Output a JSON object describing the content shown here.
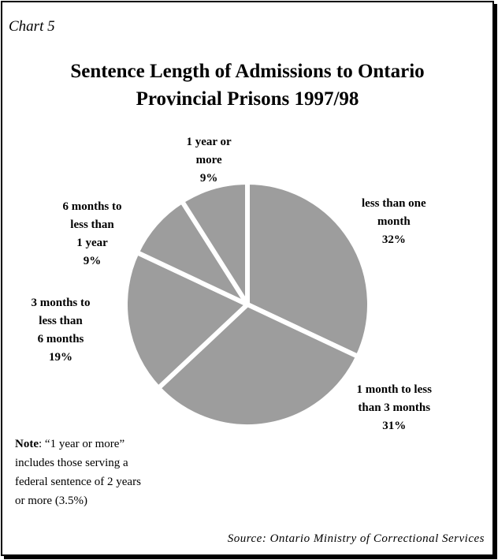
{
  "chart_label": "Chart 5",
  "chart_data": {
    "type": "pie",
    "title_lines": [
      "Sentence Length of Admissions to Ontario",
      "Provincial Prisons 1997/98"
    ],
    "slices": [
      {
        "label_lines": [
          "less than one",
          "month"
        ],
        "pct_text": "32%",
        "value": 32
      },
      {
        "label_lines": [
          "1 month to less",
          "than 3 months"
        ],
        "pct_text": "31%",
        "value": 31
      },
      {
        "label_lines": [
          "3 months to",
          "less than",
          "6 months"
        ],
        "pct_text": "19%",
        "value": 19
      },
      {
        "label_lines": [
          "6 months to",
          "less than",
          "1 year"
        ],
        "pct_text": "9%",
        "value": 9
      },
      {
        "label_lines": [
          "1 year or",
          "more"
        ],
        "pct_text": "9%",
        "value": 9
      }
    ],
    "colors": {
      "slice_fill": "#9d9d9d",
      "separator": "#ffffff"
    }
  },
  "note": {
    "lead": "Note",
    "lines": [
      ": “1 year or more”",
      "includes those serving a",
      "federal sentence of 2 years",
      "or more (3.5%)"
    ]
  },
  "source": "Source: Ontario Ministry of Correctional Services"
}
